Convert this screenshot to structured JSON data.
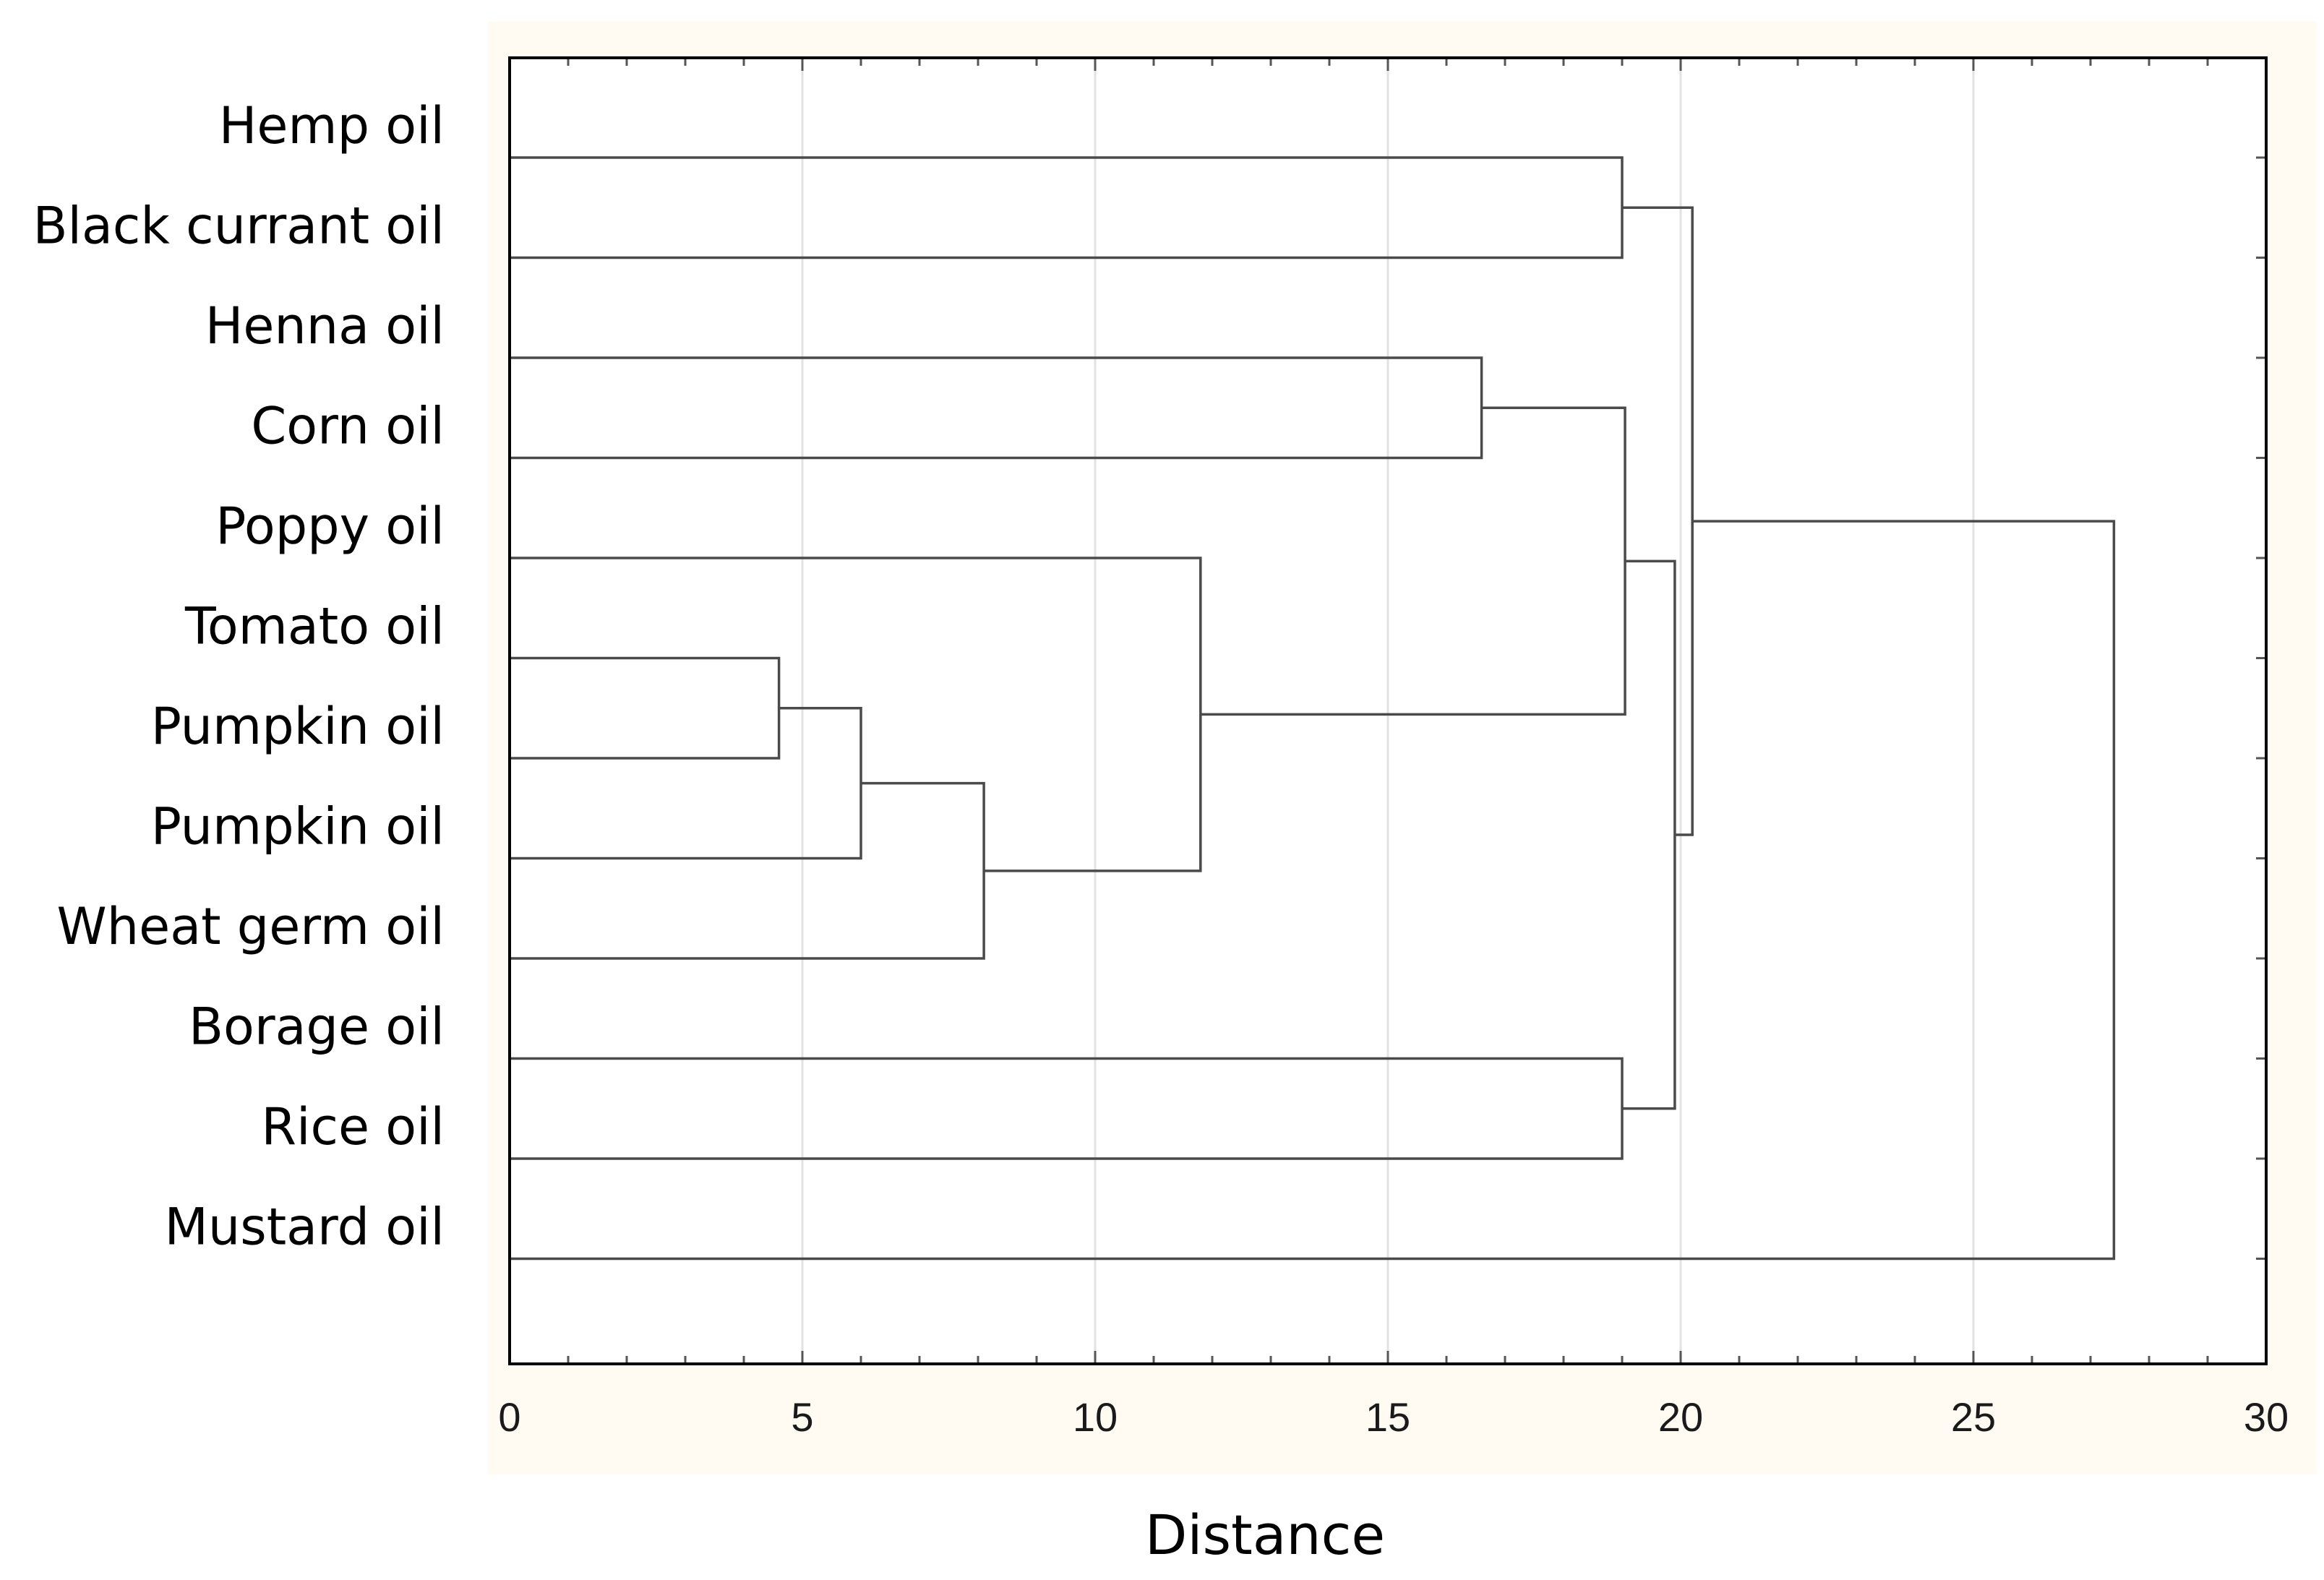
{
  "chart_data": {
    "type": "dendrogram",
    "orientation": "horizontal",
    "xlabel": "Distance",
    "xlim": [
      0,
      30
    ],
    "xticks": [
      0,
      5,
      10,
      15,
      20,
      25,
      30
    ],
    "grid": "vertical",
    "leaves": [
      "Hemp oil",
      "Black currant oil",
      "Henna oil",
      "Corn oil",
      "Poppy oil",
      "Tomato oil",
      "Pumpkin oil",
      "Pumpkin oil",
      "Wheat germ oil",
      "Borage oil",
      "Rice oil",
      "Mustard oil"
    ],
    "merges": [
      {
        "a": "L5",
        "b": "L6",
        "height": 4.6
      },
      {
        "a": "M0",
        "b": "L7",
        "height": 6.0
      },
      {
        "a": "M1",
        "b": "L8",
        "height": 8.1
      },
      {
        "a": "L4",
        "b": "M2",
        "height": 11.8
      },
      {
        "a": "L2",
        "b": "L3",
        "height": 16.6
      },
      {
        "a": "L0",
        "b": "L1",
        "height": 19.0
      },
      {
        "a": "L9",
        "b": "L10",
        "height": 19.0
      },
      {
        "a": "M4",
        "b": "M3",
        "height": 19.05
      },
      {
        "a": "M7",
        "b": "M6",
        "height": 19.9
      },
      {
        "a": "M5",
        "b": "M8",
        "height": 20.2
      },
      {
        "a": "M9",
        "b": "L11",
        "height": 27.4
      }
    ]
  }
}
